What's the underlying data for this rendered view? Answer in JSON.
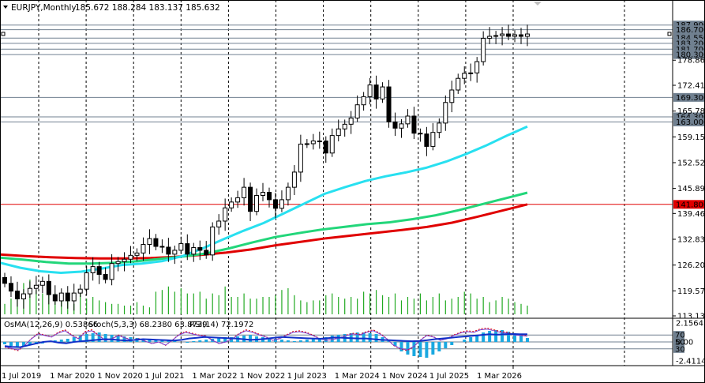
{
  "header": {
    "symbol_label": "EURJPY,Monthly",
    "ohlc_text": "185.672 188.284 183.137 185.632"
  },
  "indicator_header": {
    "osma": "OsMA(12,26,9) 0.53866",
    "stoch": "Stoch(5,3,3) 68.2380 63.8739",
    "rsi": "RSI(14) 72.1972"
  },
  "colors": {
    "bull": "#ffffff",
    "bear": "#000000",
    "ma_fast": "#28e0f0",
    "ma_mid": "#22d67a",
    "ma_slow": "#e00000",
    "volume": "#22aa22",
    "osma": "#1aa8e0",
    "level_line": "#708090",
    "red_level": "#e00000"
  },
  "chart_data": {
    "type": "candlestick",
    "symbol": "EURJPY",
    "timeframe": "Monthly",
    "ylim": [
      113.135,
      191.5
    ],
    "y_ticks": [
      "178.865",
      "172.415",
      "165.785",
      "159.155",
      "152.525",
      "145.895",
      "139.460",
      "132.830",
      "126.200",
      "119.570",
      "113.135"
    ],
    "x_ticks": [
      "1 Jul 2019",
      "1 Mar 2020",
      "1 Nov 2020",
      "1 Jul 2021",
      "1 Mar 2022",
      "1 Nov 2022",
      "1 Jul 2023",
      "1 Mar 2024",
      "1 Nov 2024",
      "1 Jul 2025",
      "1 Mar 2026"
    ],
    "levels": [
      {
        "label": "187.900",
        "value": 187.9,
        "color": "#708090"
      },
      {
        "label": "186.700",
        "value": 186.7,
        "color": "#708090"
      },
      {
        "label": "184.550",
        "value": 184.55,
        "color": "#708090"
      },
      {
        "label": "183.200",
        "value": 183.2,
        "color": "#708090"
      },
      {
        "label": "181.700",
        "value": 181.7,
        "color": "#708090"
      },
      {
        "label": "180.300",
        "value": 180.3,
        "color": "#708090"
      },
      {
        "label": "169.300",
        "value": 169.3,
        "color": "#708090"
      },
      {
        "label": "164.300",
        "value": 164.3,
        "color": "#708090"
      },
      {
        "label": "163.000",
        "value": 163.0,
        "color": "#708090"
      },
      {
        "label": "141.800",
        "value": 141.8,
        "color": "#e00000"
      }
    ],
    "candles_close": [
      121.5,
      119.5,
      117.5,
      118.8,
      120.2,
      121.0,
      122.0,
      118.6,
      117.0,
      119.0,
      117.0,
      119.0,
      120.0,
      124.2,
      125.8,
      123.8,
      122.5,
      126.6,
      127.1,
      127.7,
      128.7,
      129.3,
      131.5,
      133.0,
      131.0,
      130.8,
      129.0,
      130.0,
      131.7,
      129.0,
      130.7,
      130.0,
      128.8,
      136.0,
      137.5,
      140.9,
      142.4,
      143.5,
      146.2,
      140.0,
      144.1,
      144.9,
      143.0,
      140.8,
      143.0,
      146.2,
      150.1,
      157.3,
      157.4,
      158.1,
      158.1,
      155.0,
      159.5,
      161.2,
      162.4,
      164.0,
      167.4,
      169.5,
      172.5,
      168.9,
      172.0,
      163.0,
      161.4,
      162.5,
      164.5,
      160.1,
      159.9,
      156.7,
      160.3,
      162.7,
      168.0,
      171.2,
      174.2,
      175.5,
      175.6,
      178.5,
      184.5,
      185.0,
      185.2,
      185.6,
      185.0,
      185.4,
      185.0,
      185.6
    ],
    "ma_fast": [
      126.8,
      125.5,
      124.6,
      124.2,
      124.5,
      125.3,
      126.2,
      126.6,
      127.2,
      128.5,
      130.5,
      132.8,
      135.0,
      137.0,
      139.5,
      142.0,
      144.5,
      146.2,
      147.8,
      149.0,
      150.0,
      151.2,
      152.8,
      154.8,
      157.0,
      159.5,
      161.8
    ],
    "ma_mid": [
      128.1,
      127.6,
      127.0,
      126.6,
      126.6,
      126.8,
      127.2,
      127.8,
      128.4,
      129.2,
      130.5,
      132.0,
      133.4,
      134.4,
      135.3,
      136.0,
      136.7,
      137.2,
      138.0,
      139.0,
      140.3,
      141.8,
      143.3,
      144.8
    ],
    "ma_slow": [
      128.9,
      128.5,
      128.2,
      128.0,
      127.9,
      127.9,
      128.0,
      128.3,
      128.8,
      129.4,
      130.2,
      131.3,
      132.2,
      133.1,
      133.8,
      134.5,
      135.2,
      136.0,
      137.1,
      138.6,
      140.2,
      141.8
    ],
    "volume": [
      6,
      9,
      12,
      18,
      20,
      14,
      12,
      16,
      12,
      9,
      8,
      6,
      12,
      9,
      10,
      8,
      7,
      6,
      6,
      5,
      5,
      7,
      5,
      4,
      13,
      14,
      16,
      13,
      15,
      12,
      12,
      13,
      9,
      12,
      11,
      16,
      10,
      10,
      12,
      9,
      9,
      10,
      10,
      11,
      14,
      15,
      11,
      8,
      7,
      8,
      8,
      11,
      12,
      10,
      9,
      10,
      9,
      13,
      12,
      14,
      11,
      10,
      12,
      8,
      10,
      9,
      12,
      8,
      10,
      12,
      8,
      9,
      10,
      13,
      12,
      9,
      10,
      7,
      8,
      10,
      9,
      7,
      6,
      5
    ]
  },
  "indicator": {
    "levels": [
      "70",
      "50",
      "30"
    ],
    "right_labels": [
      "2.15643",
      "0.00",
      "-2.4114"
    ],
    "osma": [
      -0.3,
      -0.5,
      -0.6,
      -0.5,
      -0.4,
      -0.3,
      -0.2,
      0.0,
      0.2,
      0.3,
      0.4,
      0.6,
      0.8,
      1.0,
      1.1,
      1.2,
      1.0,
      0.9,
      0.8,
      0.7,
      0.6,
      0.5,
      0.4,
      0.4,
      0.3,
      0.3,
      0.2,
      0.1,
      0.0,
      -0.1,
      0.1,
      0.2,
      0.3,
      0.4,
      0.5,
      0.6,
      0.6,
      0.7,
      0.8,
      0.9,
      0.7,
      0.6,
      0.5,
      0.4,
      0.3,
      0.2,
      0.1,
      0.2,
      0.3,
      0.4,
      0.5,
      0.6,
      0.8,
      0.9,
      1.0,
      1.1,
      1.2,
      1.2,
      1.1,
      1.0,
      0.6,
      0.2,
      -0.5,
      -1.2,
      -1.6,
      -1.8,
      -1.9,
      -2.0,
      -1.6,
      -1.2,
      -0.8,
      -0.4,
      0.0,
      0.3,
      0.6,
      0.9,
      1.2,
      1.4,
      1.5,
      1.5,
      1.3,
      1.1,
      0.8,
      0.5
    ],
    "stoch_k": [
      35,
      30,
      25,
      40,
      60,
      75,
      70,
      65,
      78,
      85,
      70,
      60,
      80,
      85,
      70,
      55,
      60,
      70,
      62,
      55,
      60,
      52,
      45,
      50,
      40,
      55,
      72,
      80,
      75,
      70,
      68,
      55,
      45,
      50,
      60,
      75,
      85,
      80,
      72,
      65,
      55,
      60,
      70,
      80,
      82,
      78,
      70,
      60,
      55,
      58,
      62,
      70,
      75,
      72,
      80,
      85,
      75,
      60,
      40,
      30,
      25,
      35,
      55,
      70,
      65,
      55,
      60,
      70,
      78,
      82,
      80,
      88,
      90,
      85,
      80,
      78,
      72,
      70,
      68
    ],
    "rsi": [
      38,
      36,
      35,
      40,
      45,
      50,
      52,
      48,
      46,
      50,
      52,
      54,
      56,
      58,
      57,
      55,
      54,
      56,
      58,
      57,
      56,
      55,
      54,
      56,
      60,
      62,
      64,
      63,
      62,
      61,
      60,
      58,
      56,
      57,
      59,
      62,
      64,
      63,
      62,
      61,
      60,
      59,
      61,
      63,
      62,
      61,
      60,
      60,
      58,
      56,
      55,
      54,
      53,
      52,
      53,
      55,
      58,
      60,
      62,
      64,
      66,
      68,
      70,
      72,
      71,
      72,
      73,
      72,
      72
    ]
  }
}
